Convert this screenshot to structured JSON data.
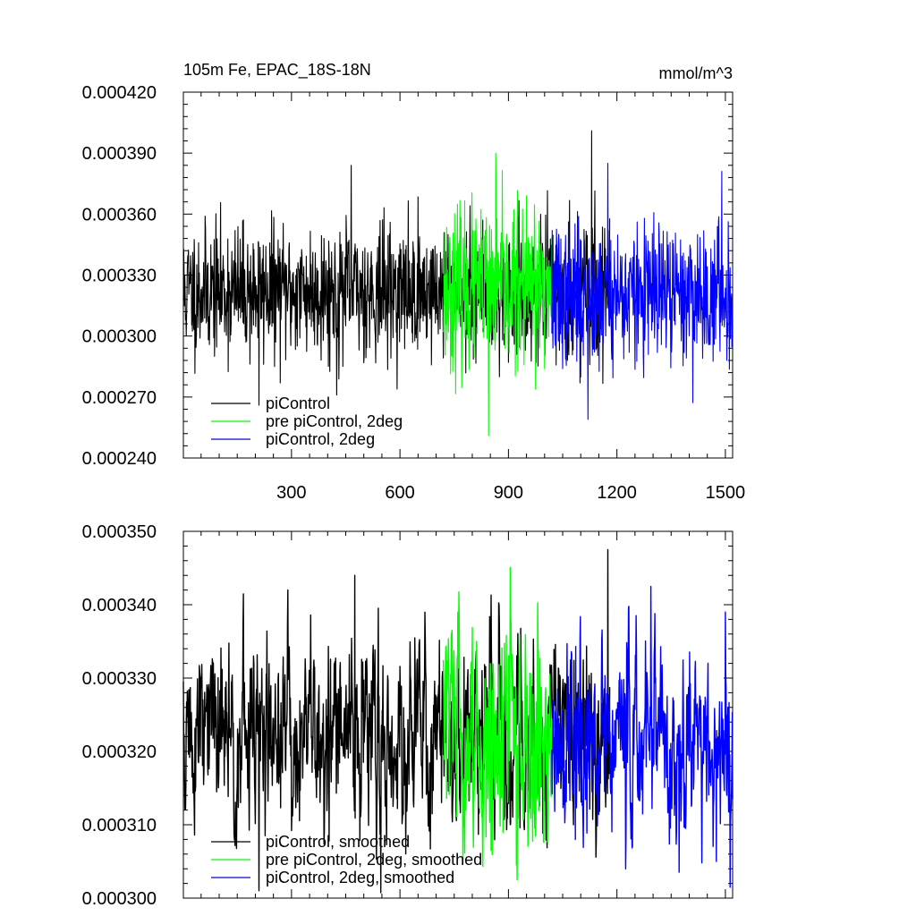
{
  "chart_data": [
    {
      "type": "line",
      "title_left": "105m Fe, EPAC_18S-18N",
      "title_right": "mmol/m^3",
      "xlabel": "",
      "ylabel": "",
      "xlim": [
        1,
        1520
      ],
      "ylim": [
        0.00024,
        0.00042
      ],
      "x_ticks": [
        300,
        600,
        900,
        1200,
        1500
      ],
      "x_tick_labels": [
        "300",
        "600",
        "900",
        "1200",
        "1500"
      ],
      "y_ticks": [
        0.00024,
        0.00027,
        0.0003,
        0.00033,
        0.00036,
        0.00039,
        0.00042
      ],
      "y_tick_labels": [
        "0.000240",
        "0.000270",
        "0.000300",
        "0.000330",
        "0.000360",
        "0.000390",
        "0.000420"
      ],
      "legend_position": "bottom-left",
      "series": [
        {
          "name": "piControl",
          "color": "#000000",
          "x_start": 1,
          "x_end": 1180,
          "mean": 0.000322,
          "std": 1.6e-05,
          "seed": 11,
          "peaks": [
            [
              210,
              0.000266
            ],
            [
              425,
              0.000271
            ],
            [
              465,
              0.000384
            ],
            [
              1130,
              0.000401
            ]
          ]
        },
        {
          "name": "pre piControl, 2deg",
          "color": "#00ff00",
          "x_start": 720,
          "x_end": 1020,
          "mean": 0.000323,
          "std": 1.9e-05,
          "seed": 23,
          "peaks": [
            [
              865,
              0.00039
            ],
            [
              845,
              0.000251
            ],
            [
              975,
              0.000274
            ]
          ]
        },
        {
          "name": "piControl, 2deg",
          "color": "#0000ff",
          "x_start": 1020,
          "x_end": 1520,
          "mean": 0.00032,
          "std": 1.7e-05,
          "seed": 37,
          "peaks": [
            [
              1120,
              0.000259
            ],
            [
              1490,
              0.000381
            ],
            [
              1175,
              0.000385
            ]
          ]
        }
      ]
    },
    {
      "type": "line",
      "xlim": [
        1,
        1520
      ],
      "ylim": [
        0.0003,
        0.00035
      ],
      "x_ticks": [
        300,
        600,
        900,
        1200,
        1500
      ],
      "y_ticks": [
        0.0003,
        0.00031,
        0.00032,
        0.00033,
        0.00034,
        0.00035
      ],
      "y_tick_labels": [
        "0.000300",
        "0.000310",
        "0.000320",
        "0.000330",
        "0.000340",
        "0.000350"
      ],
      "legend_position": "bottom-left",
      "series": [
        {
          "name": "piControl, smoothed",
          "color": "#000000",
          "x_start": 1,
          "x_end": 1180,
          "mean": 0.000322,
          "std": 6.5e-06,
          "seed": 51,
          "peaks": [
            [
              210,
              0.000301
            ],
            [
              1175,
              0.0003475
            ],
            [
              475,
              0.000344
            ],
            [
              290,
              0.000342
            ]
          ]
        },
        {
          "name": "pre piControl, 2deg, smoothed",
          "color": "#00ff00",
          "x_start": 720,
          "x_end": 1020,
          "mean": 0.000322,
          "std": 7.5e-06,
          "seed": 63,
          "peaks": [
            [
              760,
              0.000339
            ],
            [
              885,
              0.000309
            ],
            [
              975,
              0.0003085
            ]
          ]
        },
        {
          "name": "piControl, 2deg, smoothed",
          "color": "#0000ff",
          "x_start": 1020,
          "x_end": 1520,
          "mean": 0.000321,
          "std": 6.8e-06,
          "seed": 77,
          "peaks": [
            [
              1475,
              0.000305
            ],
            [
              1500,
              0.000339
            ],
            [
              1085,
              0.000308
            ]
          ]
        }
      ]
    }
  ]
}
